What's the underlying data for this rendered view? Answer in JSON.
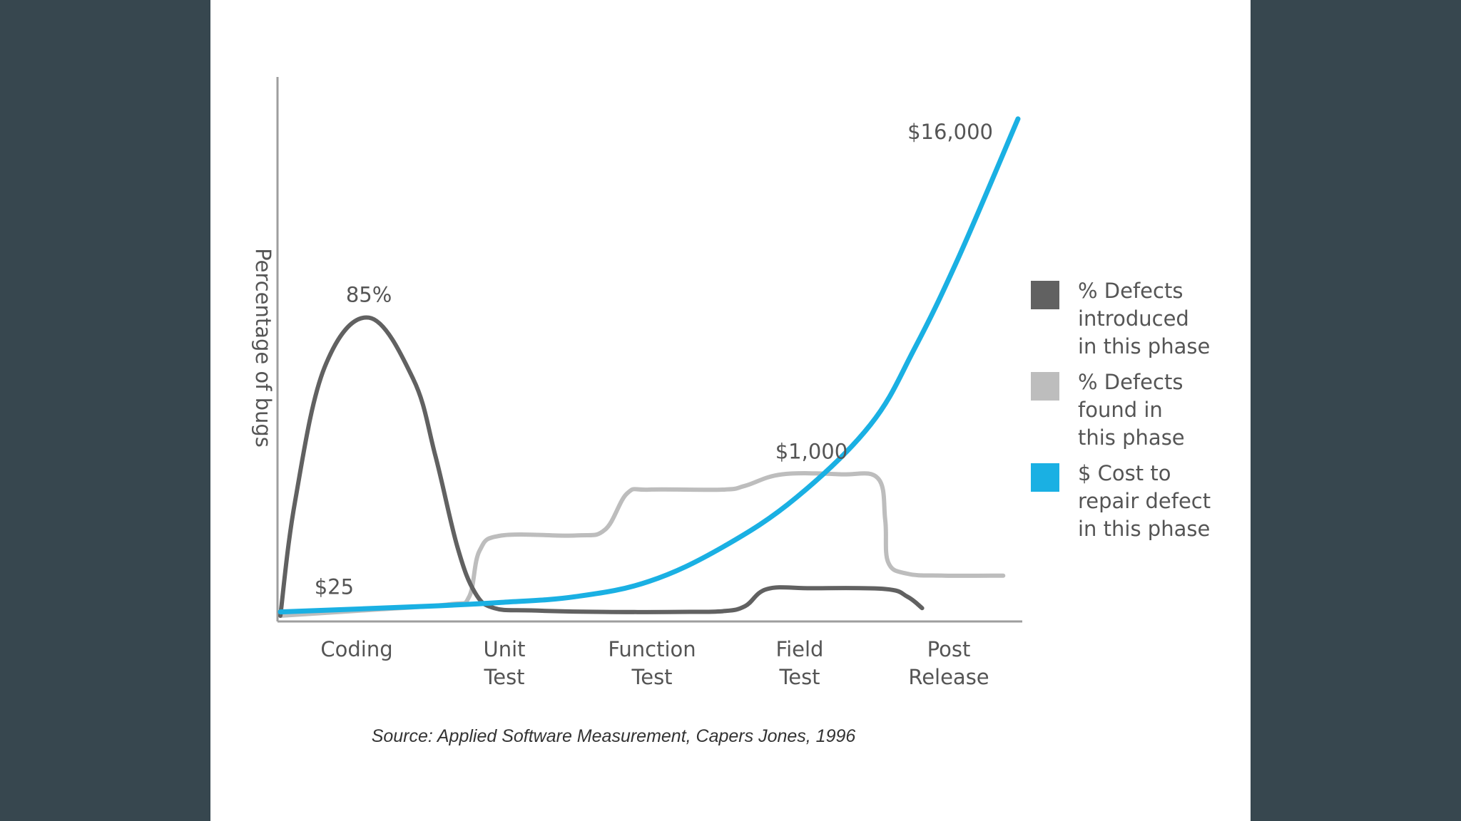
{
  "chart_data": {
    "type": "line",
    "ylabel": "Percentage of bugs",
    "categories": [
      {
        "lines": [
          "Coding"
        ]
      },
      {
        "lines": [
          "Unit",
          "Test"
        ]
      },
      {
        "lines": [
          "Function",
          "Test"
        ]
      },
      {
        "lines": [
          "Field",
          "Test"
        ]
      },
      {
        "lines": [
          "Post",
          "Release"
        ]
      }
    ],
    "series": [
      {
        "key": "introduced",
        "color": "#616161",
        "legend": [
          "% Defects",
          "introduced",
          "in this phase"
        ],
        "points": [
          [
            0.0,
            0
          ],
          [
            0.1,
            30
          ],
          [
            0.3,
            65
          ],
          [
            0.6,
            78
          ],
          [
            0.9,
            62
          ],
          [
            1.05,
            42
          ],
          [
            1.2,
            18
          ],
          [
            1.32,
            6
          ],
          [
            1.45,
            2
          ],
          [
            1.7,
            1.4
          ],
          [
            2.2,
            1
          ],
          [
            2.7,
            1
          ],
          [
            3.0,
            1.2
          ],
          [
            3.15,
            2.5
          ],
          [
            3.3,
            7
          ],
          [
            3.6,
            7.2
          ],
          [
            4.1,
            7
          ],
          [
            4.25,
            5
          ],
          [
            4.35,
            2
          ]
        ]
      },
      {
        "key": "found",
        "color": "#bdbdbd",
        "legend": [
          "% Defects",
          "found in",
          "this phase"
        ],
        "points": [
          [
            0.0,
            0
          ],
          [
            0.6,
            1.5
          ],
          [
            1.15,
            3
          ],
          [
            1.28,
            5
          ],
          [
            1.35,
            17
          ],
          [
            1.5,
            21
          ],
          [
            2.0,
            21
          ],
          [
            2.2,
            22.5
          ],
          [
            2.35,
            32
          ],
          [
            2.5,
            33
          ],
          [
            3.0,
            33
          ],
          [
            3.15,
            34
          ],
          [
            3.4,
            37
          ],
          [
            3.8,
            37
          ],
          [
            4.05,
            36
          ],
          [
            4.1,
            25
          ],
          [
            4.12,
            14
          ],
          [
            4.25,
            11
          ],
          [
            4.5,
            10.5
          ],
          [
            4.9,
            10.5
          ]
        ]
      },
      {
        "key": "cost",
        "color": "#1ab0e3",
        "legend": [
          "$ Cost to",
          "repair defect",
          "in this phase"
        ],
        "points": [
          [
            0.0,
            1
          ],
          [
            1.0,
            2.5
          ],
          [
            1.5,
            3.5
          ],
          [
            2.0,
            5
          ],
          [
            2.5,
            9
          ],
          [
            3.0,
            18
          ],
          [
            3.5,
            31
          ],
          [
            4.0,
            50
          ],
          [
            4.3,
            70
          ],
          [
            4.6,
            94
          ],
          [
            5.0,
            130
          ]
        ]
      }
    ],
    "annotations": [
      {
        "text": "85%",
        "x": 0.6,
        "y": 78,
        "dx": 0,
        "dy": -22,
        "anchor": "middle"
      },
      {
        "text": "$25",
        "x": 0.45,
        "y": 2,
        "dx": 10,
        "dy": -20,
        "anchor": "end"
      },
      {
        "text": "$1,000",
        "x": 3.6,
        "y": 37,
        "dx": 0,
        "dy": -22,
        "anchor": "middle"
      },
      {
        "text": "$16,000",
        "x": 5.0,
        "y": 130,
        "dx": -35,
        "dy": 28,
        "anchor": "end"
      }
    ],
    "source": "Source: Applied Software Measurement, Capers Jones, 1996"
  }
}
